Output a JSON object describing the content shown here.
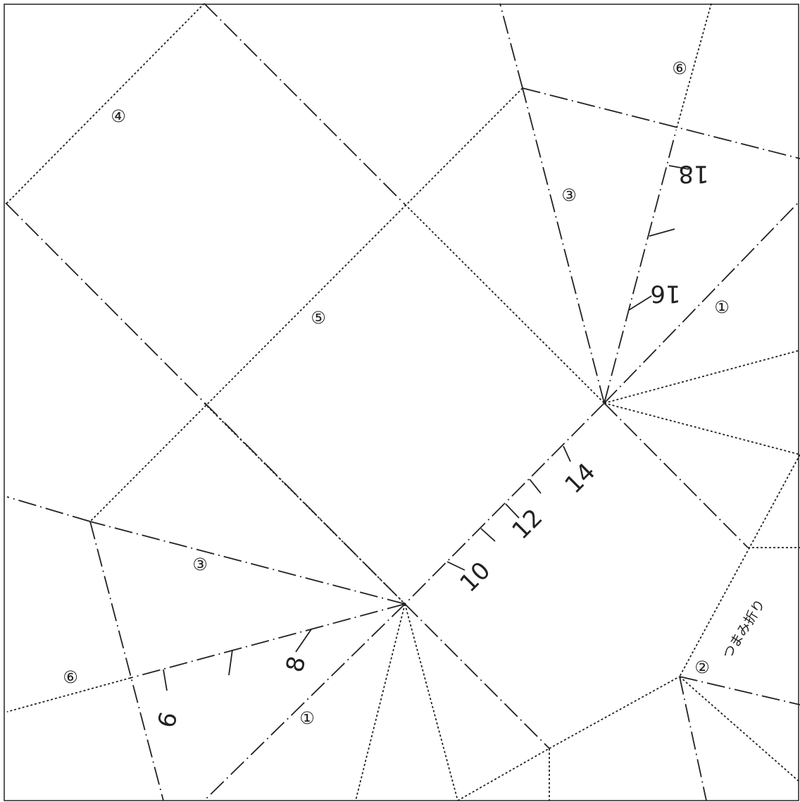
{
  "fold_labels": [
    "④",
    "⑥",
    "③",
    "⑤",
    "①",
    "③",
    "⑥",
    "①",
    "②"
  ],
  "scale_labels": [
    "18",
    "16",
    "14",
    "12",
    "10",
    "8",
    "6"
  ],
  "pinch_fold_note": "つまみ折り"
}
